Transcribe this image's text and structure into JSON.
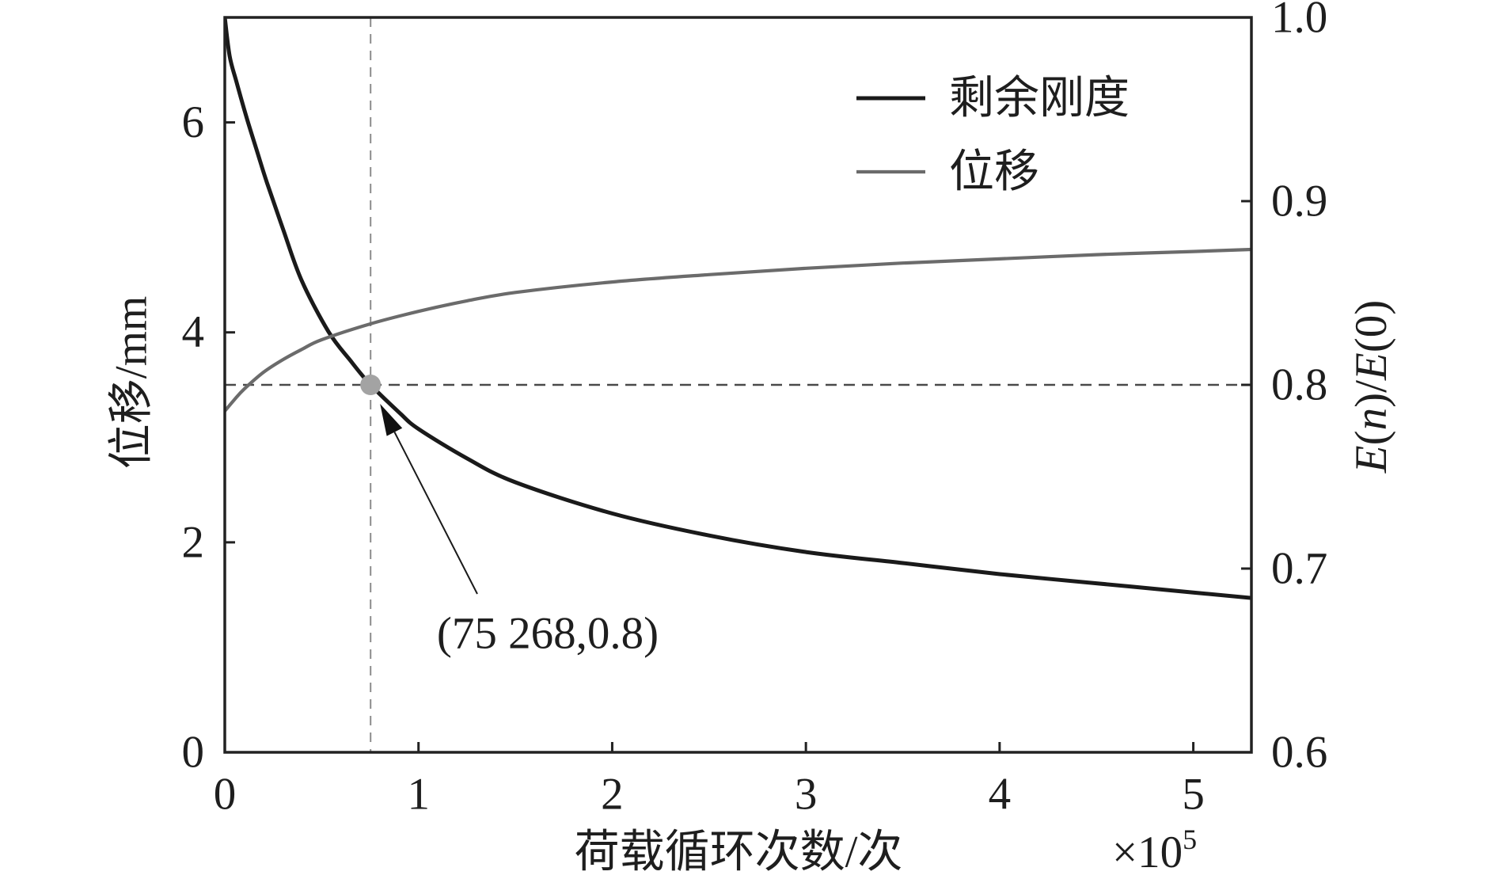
{
  "chart_data": {
    "type": "line",
    "xlabel": "荷载循环次数/次",
    "x_multiplier": {
      "base": "×10",
      "exponent": "5"
    },
    "xlim": [
      0,
      5.3
    ],
    "x_ticks": [
      0,
      1,
      2,
      3,
      4,
      5
    ],
    "x_tick_labels": [
      "0",
      "1",
      "2",
      "3",
      "4",
      "5"
    ],
    "y_left": {
      "label": "位移/mm",
      "lim": [
        0,
        7
      ],
      "ticks": [
        0,
        2,
        4,
        6
      ],
      "tick_labels": [
        "0",
        "2",
        "4",
        "6"
      ]
    },
    "y_right": {
      "label": "E(n)/E(0)",
      "lim": [
        0.6,
        1.0
      ],
      "ticks": [
        0.6,
        0.7,
        0.8,
        0.9,
        1.0
      ],
      "tick_labels": [
        "0.6",
        "0.7",
        "0.8",
        "0.9",
        "1.0"
      ]
    },
    "grid": false,
    "legend": {
      "position": "top-right"
    },
    "series": [
      {
        "name": "剩余刚度",
        "axis": "right",
        "color": "#1a1a1a",
        "x": [
          0,
          0.025,
          0.06,
          0.114,
          0.17,
          0.218,
          0.3,
          0.396,
          0.535,
          0.65,
          0.75268,
          0.9,
          1.0,
          1.25,
          1.5,
          2.0,
          2.5,
          3.0,
          3.5,
          4.0,
          4.5,
          5.0,
          5.3
        ],
        "y": [
          1.0,
          0.979,
          0.965,
          0.945,
          0.926,
          0.91,
          0.885,
          0.857,
          0.829,
          0.813,
          0.8,
          0.785,
          0.776,
          0.76,
          0.747,
          0.73,
          0.718,
          0.709,
          0.703,
          0.697,
          0.692,
          0.687,
          0.684
        ]
      },
      {
        "name": "位移",
        "axis": "left",
        "color": "#6b6b6b",
        "x": [
          0,
          0.05,
          0.1,
          0.2,
          0.3,
          0.4,
          0.5,
          0.75,
          1.0,
          1.25,
          1.5,
          2.0,
          2.5,
          3.0,
          3.5,
          4.0,
          4.5,
          5.0,
          5.3
        ],
        "y": [
          3.25,
          3.36,
          3.46,
          3.62,
          3.74,
          3.84,
          3.93,
          4.08,
          4.2,
          4.3,
          4.38,
          4.48,
          4.55,
          4.61,
          4.66,
          4.7,
          4.74,
          4.77,
          4.79
        ]
      }
    ],
    "reference_lines": {
      "x": 0.75268,
      "y_right": 0.8,
      "style": "dashed"
    },
    "annotation": {
      "text": "(75 268,0.8)",
      "x": 0.75268,
      "y": 0.8,
      "axis": "right",
      "marker_color": "#a3a3a3"
    }
  }
}
